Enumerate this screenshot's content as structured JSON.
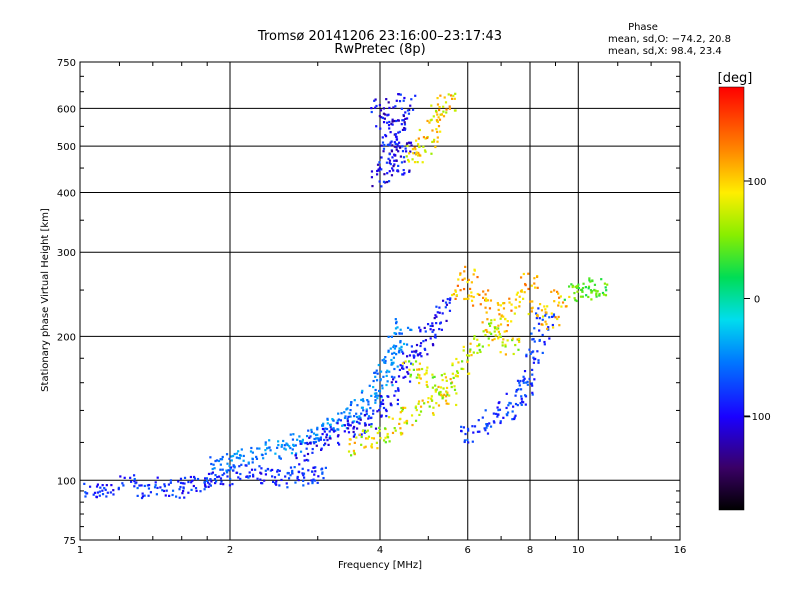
{
  "chart_data": {
    "type": "scatter",
    "title": "Tromsø 20141206 23:16:00–23:17:43",
    "subtitle": "RwPretec (8p)",
    "xlabel": "Frequency [MHz]",
    "ylabel": "Stationary phase Virtual Height [km]",
    "x_scale": "log",
    "y_scale": "log",
    "xlim": [
      1,
      16
    ],
    "ylim": [
      75,
      750
    ],
    "x_ticks": [
      1,
      2,
      4,
      6,
      8,
      10,
      16
    ],
    "x_tick_labels": [
      "1",
      "2",
      "4",
      "6",
      "8",
      "10",
      "16"
    ],
    "y_ticks": [
      75,
      100,
      200,
      300,
      400,
      500,
      600,
      750
    ],
    "y_tick_labels": [
      "75",
      "100",
      "200",
      "300",
      "400",
      "500",
      "600",
      "750"
    ],
    "grid": true,
    "stats": {
      "heading": "Phase",
      "line1": "mean, sd,O:  −74.2, 20.8",
      "line2": "mean, sd,X:  98.4, 23.4"
    },
    "colorbar": {
      "label": "[deg]",
      "range": [
        -180,
        180
      ],
      "ticks": [
        100,
        0,
        -100
      ],
      "tick_labels": [
        "100",
        "0",
        "−100"
      ]
    },
    "clusters": [
      {
        "phase_range": [
          -110,
          -60
        ],
        "points": [
          [
            1.05,
            95
          ],
          [
            1.12,
            96
          ],
          [
            1.25,
            98
          ],
          [
            1.35,
            96
          ],
          [
            1.45,
            97
          ],
          [
            1.55,
            96
          ],
          [
            1.65,
            98
          ],
          [
            1.75,
            99
          ],
          [
            1.85,
            100
          ],
          [
            1.95,
            102
          ],
          [
            2.1,
            104
          ],
          [
            2.25,
            103
          ],
          [
            2.4,
            102
          ],
          [
            2.55,
            101
          ],
          [
            2.7,
            102
          ],
          [
            2.85,
            104
          ],
          [
            3.0,
            103
          ]
        ]
      },
      {
        "phase_range": [
          -70,
          -30
        ],
        "points": [
          [
            1.9,
            108
          ],
          [
            2.0,
            110
          ],
          [
            2.15,
            112
          ],
          [
            2.3,
            114
          ],
          [
            2.45,
            116
          ],
          [
            2.6,
            117
          ],
          [
            2.75,
            120
          ],
          [
            2.9,
            123
          ],
          [
            3.05,
            126
          ],
          [
            3.2,
            129
          ],
          [
            3.35,
            133
          ],
          [
            3.5,
            138
          ],
          [
            3.65,
            142
          ],
          [
            3.8,
            148
          ],
          [
            3.95,
            155
          ],
          [
            4.05,
            163
          ],
          [
            4.15,
            172
          ],
          [
            4.25,
            182
          ],
          [
            4.35,
            195
          ],
          [
            4.45,
            210
          ]
        ]
      },
      {
        "phase_range": [
          -120,
          -70
        ],
        "points": [
          [
            2.8,
            115
          ],
          [
            3.0,
            120
          ],
          [
            3.2,
            124
          ],
          [
            3.4,
            128
          ],
          [
            3.6,
            130
          ],
          [
            3.8,
            134
          ],
          [
            4.0,
            140
          ],
          [
            4.2,
            150
          ],
          [
            4.4,
            165
          ],
          [
            4.6,
            180
          ],
          [
            4.8,
            190
          ],
          [
            5.0,
            200
          ],
          [
            5.2,
            215
          ],
          [
            5.4,
            230
          ]
        ]
      },
      {
        "phase_range": [
          40,
          120
        ],
        "points": [
          [
            3.6,
            118
          ],
          [
            3.8,
            122
          ],
          [
            4.0,
            125
          ],
          [
            4.3,
            130
          ],
          [
            4.6,
            136
          ],
          [
            4.9,
            142
          ],
          [
            5.2,
            150
          ],
          [
            5.5,
            160
          ],
          [
            5.8,
            172
          ],
          [
            6.1,
            185
          ],
          [
            6.4,
            198
          ],
          [
            6.7,
            210
          ],
          [
            7.0,
            200
          ],
          [
            7.3,
            190
          ],
          [
            4.6,
            170
          ],
          [
            4.9,
            165
          ],
          [
            5.2,
            158
          ],
          [
            5.5,
            150
          ]
        ]
      },
      {
        "phase_range": [
          -100,
          -60
        ],
        "points": [
          [
            6.0,
            125
          ],
          [
            6.4,
            130
          ],
          [
            6.8,
            135
          ],
          [
            7.2,
            140
          ],
          [
            7.5,
            148
          ],
          [
            7.8,
            155
          ],
          [
            8.0,
            165
          ],
          [
            8.2,
            180
          ],
          [
            8.4,
            200
          ],
          [
            8.6,
            220
          ]
        ]
      },
      {
        "phase_range": [
          -130,
          -70
        ],
        "points": [
          [
            4.0,
            430
          ],
          [
            4.1,
            460
          ],
          [
            4.2,
            500
          ],
          [
            4.3,
            540
          ],
          [
            4.4,
            580
          ],
          [
            4.5,
            620
          ],
          [
            4.0,
            600
          ],
          [
            4.1,
            560
          ],
          [
            4.2,
            520
          ],
          [
            4.3,
            480
          ],
          [
            4.4,
            450
          ],
          [
            4.5,
            500
          ]
        ]
      },
      {
        "phase_range": [
          60,
          130
        ],
        "points": [
          [
            4.7,
            480
          ],
          [
            4.85,
            500
          ],
          [
            5.0,
            520
          ],
          [
            5.15,
            560
          ],
          [
            5.3,
            600
          ],
          [
            5.45,
            620
          ]
        ]
      },
      {
        "phase_range": [
          80,
          140
        ],
        "points": [
          [
            5.8,
            250
          ],
          [
            6.0,
            270
          ],
          [
            6.3,
            240
          ],
          [
            6.8,
            230
          ],
          [
            7.2,
            220
          ],
          [
            7.6,
            240
          ],
          [
            8.0,
            260
          ],
          [
            8.3,
            230
          ],
          [
            8.8,
            215
          ],
          [
            9.2,
            240
          ]
        ]
      },
      {
        "phase_range": [
          20,
          60
        ],
        "points": [
          [
            9.8,
            248
          ],
          [
            10.2,
            250
          ],
          [
            10.6,
            252
          ],
          [
            11.0,
            254
          ]
        ]
      }
    ]
  }
}
